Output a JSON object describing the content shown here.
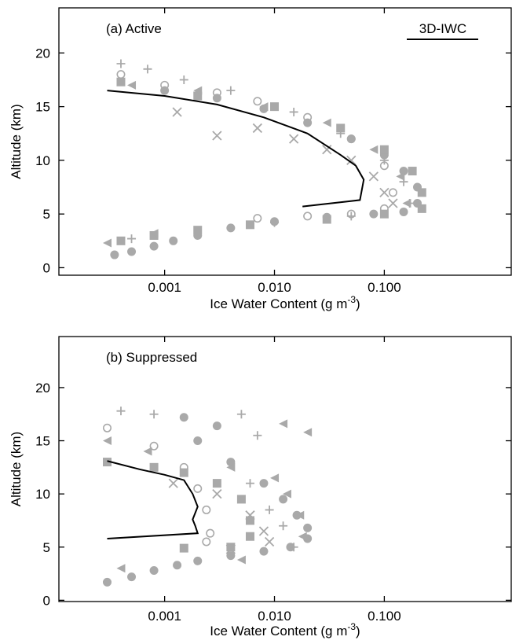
{
  "chart_data": [
    {
      "type": "scatter",
      "title": "(a) Active",
      "ylabel": "Altitude (km)",
      "xlabel": {
        "text": "Ice Water Content (g m",
        "sup": "-3",
        "end": ")"
      },
      "xscale": "log",
      "xlim": [
        0.000109,
        1.43
      ],
      "ylim": [
        -0.7,
        24.2
      ],
      "xticks": [
        0.001,
        {
          "value": 0.01,
          "label": "0.010"
        },
        {
          "value": 0.1,
          "label": "0.100"
        }
      ],
      "yticks": [
        0,
        5,
        10,
        15,
        20
      ],
      "legend": "top-right",
      "series": [
        {
          "marker": "filled-circle",
          "color": "#a9a9a9",
          "x": [
            0.00035,
            0.0005,
            0.0008,
            0.0012,
            0.002,
            0.004,
            0.01,
            0.03,
            0.08,
            0.15,
            0.2,
            0.2,
            0.15,
            0.1,
            0.05,
            0.02,
            0.008,
            0.003,
            0.001
          ],
          "y": [
            1.2,
            1.5,
            2,
            2.5,
            3,
            3.7,
            4.3,
            4.7,
            5,
            5.2,
            6,
            7.5,
            9,
            10.5,
            12,
            13.5,
            14.8,
            15.8,
            16.5
          ]
        },
        {
          "marker": "open-circle",
          "color": "#a9a9a9",
          "x": [
            0.0004,
            0.001,
            0.003,
            0.007,
            0.02,
            0.05,
            0.1,
            0.12,
            0.1,
            0.05,
            0.02,
            0.007
          ],
          "y": [
            18,
            17,
            16.3,
            15.5,
            14,
            12,
            9.5,
            7,
            5.5,
            5,
            4.8,
            4.6
          ]
        },
        {
          "marker": "filled-square",
          "color": "#a9a9a9",
          "x": [
            0.0004,
            0.002,
            0.01,
            0.04,
            0.1,
            0.18,
            0.22,
            0.22,
            0.1,
            0.03,
            0.006,
            0.002,
            0.0008,
            0.0004
          ],
          "y": [
            17.3,
            16,
            15,
            13,
            11,
            9,
            7,
            5.5,
            5,
            4.5,
            4,
            3.5,
            3,
            2.5
          ]
        },
        {
          "marker": "x",
          "color": "#a9a9a9",
          "x": [
            0.0013,
            0.003,
            0.007,
            0.015,
            0.03,
            0.05,
            0.08,
            0.1,
            0.12
          ],
          "y": [
            14.5,
            12.3,
            13,
            12,
            11,
            10,
            8.5,
            7,
            6
          ]
        },
        {
          "marker": "plus",
          "color": "#a9a9a9",
          "x": [
            0.0004,
            0.0007,
            0.0015,
            0.004,
            0.015,
            0.04,
            0.1,
            0.15,
            0.17,
            0.05,
            0.01,
            0.0005
          ],
          "y": [
            19,
            18.5,
            17.5,
            16.5,
            14.5,
            12.5,
            10,
            8,
            6,
            4.8,
            4.2,
            2.7
          ]
        },
        {
          "marker": "filled-triangle",
          "color": "#a9a9a9",
          "x": [
            0.0005,
            0.002,
            0.008,
            0.03,
            0.08,
            0.14,
            0.16,
            0.0008,
            0.0003
          ],
          "y": [
            17,
            16.5,
            15,
            13.5,
            11,
            8.5,
            6,
            3.2,
            2.3
          ]
        },
        {
          "name": "3D-IWC",
          "marker": "line",
          "color": "#000000",
          "x": [
            0.0003,
            0.001,
            0.003,
            0.008,
            0.02,
            0.04,
            0.055,
            0.065,
            0.06,
            0.018
          ],
          "y": [
            16.5,
            16,
            15.2,
            14,
            12.5,
            10.5,
            9.5,
            8.2,
            6.3,
            5.7
          ]
        }
      ]
    },
    {
      "type": "scatter",
      "title": "(b) Suppressed",
      "ylabel": "Altitude (km)",
      "xlabel": {
        "text": "Ice Water Content (g m",
        "sup": "-3",
        "end": ")"
      },
      "xscale": "log",
      "xlim": [
        0.000109,
        1.43
      ],
      "ylim": [
        -0.12,
        24.8
      ],
      "xticks": [
        0.001,
        {
          "value": 0.01,
          "label": "0.010"
        },
        {
          "value": 0.1,
          "label": "0.100"
        }
      ],
      "yticks": [
        0,
        5,
        10,
        15,
        20
      ],
      "series": [
        {
          "marker": "filled-circle",
          "color": "#a9a9a9",
          "x": [
            0.0003,
            0.0005,
            0.0008,
            0.0013,
            0.002,
            0.004,
            0.008,
            0.014,
            0.02,
            0.02,
            0.016,
            0.012,
            0.008,
            0.004,
            0.002,
            0.0015,
            0.003
          ],
          "y": [
            1.7,
            2.2,
            2.8,
            3.3,
            3.7,
            4.2,
            4.6,
            5,
            5.8,
            6.8,
            8,
            9.5,
            11,
            13,
            15,
            17.2,
            16.4
          ]
        },
        {
          "marker": "open-circle",
          "color": "#a9a9a9",
          "x": [
            0.0003,
            0.0008,
            0.0015,
            0.002,
            0.0024,
            0.0026,
            0.0024
          ],
          "y": [
            16.2,
            14.5,
            12.5,
            10.5,
            8.5,
            6.3,
            5.5
          ]
        },
        {
          "marker": "filled-square",
          "color": "#a9a9a9",
          "x": [
            0.0003,
            0.0008,
            0.0015,
            0.003,
            0.005,
            0.006,
            0.006,
            0.004,
            0.0015
          ],
          "y": [
            13,
            12.5,
            12,
            11,
            9.5,
            7.5,
            6,
            5,
            4.9
          ]
        },
        {
          "marker": "x",
          "color": "#a9a9a9",
          "x": [
            0.0012,
            0.003,
            0.006,
            0.008,
            0.009,
            0.004
          ],
          "y": [
            11,
            10,
            8,
            6.5,
            5.5,
            4.8
          ]
        },
        {
          "marker": "plus",
          "color": "#a9a9a9",
          "x": [
            0.0004,
            0.0008,
            0.005,
            0.007,
            0.006,
            0.009,
            0.012,
            0.015
          ],
          "y": [
            17.8,
            17.5,
            17.5,
            15.5,
            11,
            8.5,
            7,
            5
          ]
        },
        {
          "marker": "filled-triangle",
          "color": "#a9a9a9",
          "x": [
            0.0003,
            0.0007,
            0.004,
            0.01,
            0.013,
            0.017,
            0.018,
            0.005,
            0.0004,
            0.02,
            0.012
          ],
          "y": [
            15,
            14,
            12.5,
            11.5,
            10,
            8,
            6,
            3.8,
            3,
            15.8,
            16.6
          ]
        },
        {
          "marker": "line",
          "color": "#000000",
          "x": [
            0.0003,
            0.0006,
            0.001,
            0.0015,
            0.0018,
            0.002,
            0.0018,
            0.0019,
            0.002,
            0.0003
          ],
          "y": [
            13.1,
            12.3,
            11.8,
            11.3,
            10,
            8.8,
            7.6,
            7,
            6.3,
            5.8
          ]
        }
      ]
    }
  ]
}
